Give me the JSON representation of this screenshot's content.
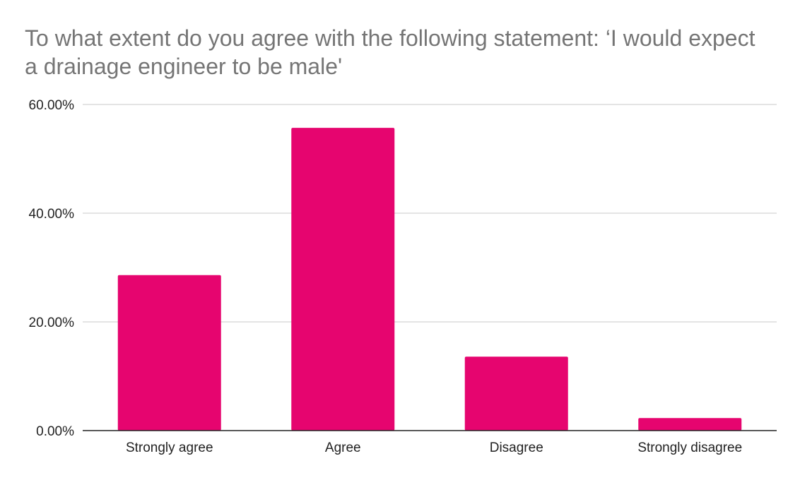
{
  "chart_data": {
    "type": "bar",
    "title": "To what extent do you agree with the following statement: ‘I would expect a drainage engineer to be male'",
    "xlabel": "",
    "ylabel": "",
    "categories": [
      "Strongly agree",
      "Agree",
      "Disagree",
      "Strongly disagree"
    ],
    "values": [
      28.6,
      55.7,
      13.6,
      2.3
    ],
    "ylim": [
      0,
      60
    ],
    "yticks": [
      {
        "value": 0,
        "label": "0.00%"
      },
      {
        "value": 20,
        "label": "20.00%"
      },
      {
        "value": 40,
        "label": "40.00%"
      },
      {
        "value": 60,
        "label": "60.00%"
      }
    ],
    "grid": true,
    "legend": "none",
    "colors": {
      "bar": "#e6056f",
      "grid": "#c8c8c8",
      "axis": "#222222",
      "title": "#757575"
    }
  }
}
